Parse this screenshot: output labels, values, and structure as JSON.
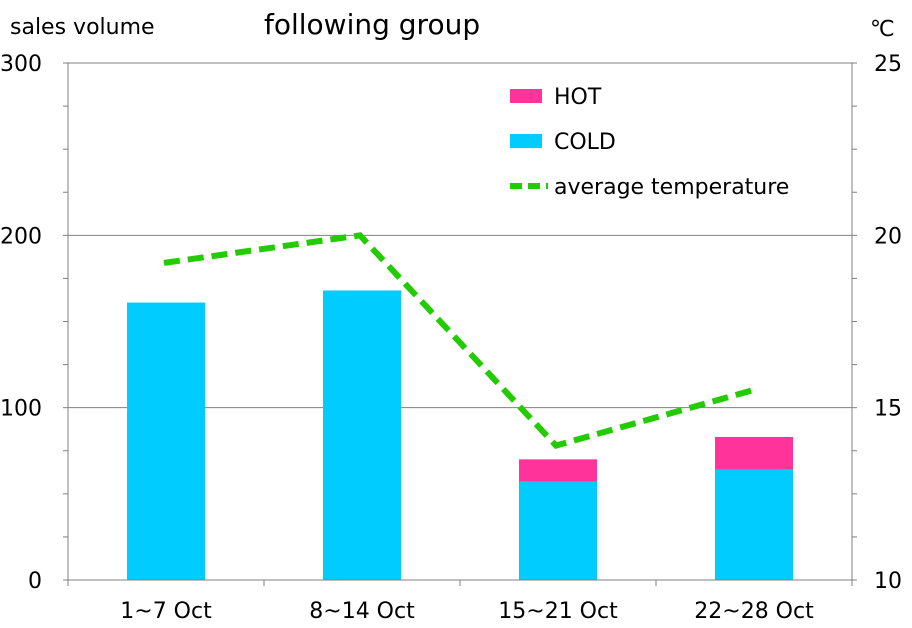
{
  "chart_data": {
    "type": "bar",
    "title": "following group",
    "ylabel": "sales volume",
    "y2label": "℃",
    "categories": [
      "1~7 Oct",
      "8~14 Oct",
      "15~21 Oct",
      "22~28 Oct"
    ],
    "ylim": [
      0,
      300
    ],
    "yticks": [
      "0",
      "100",
      "200",
      "300"
    ],
    "y2lim": [
      10,
      25
    ],
    "y2ticks": [
      "10",
      "15",
      "20",
      "25"
    ],
    "stacked": true,
    "series": [
      {
        "name": "COLD",
        "type": "bar",
        "axis": "left",
        "color": "#00CCFF",
        "values": [
          161,
          168,
          57,
          64
        ]
      },
      {
        "name": "HOT",
        "type": "bar",
        "axis": "left",
        "color": "#FF3399",
        "values": [
          0,
          0,
          13,
          19
        ]
      },
      {
        "name": "average temperature",
        "type": "line",
        "axis": "right",
        "color": "#22CC00",
        "style": "dashed",
        "values": [
          19.2,
          20.0,
          13.9,
          15.5
        ]
      }
    ],
    "legend": {
      "placement": "top-right",
      "items": [
        {
          "label": "HOT",
          "color": "#FF3399",
          "kind": "box"
        },
        {
          "label": "COLD",
          "color": "#00CCFF",
          "kind": "box"
        },
        {
          "label": "average temperature",
          "color": "#22CC00",
          "kind": "dashed-line"
        }
      ]
    },
    "grid": {
      "horizontal": true,
      "vertical": false
    }
  }
}
